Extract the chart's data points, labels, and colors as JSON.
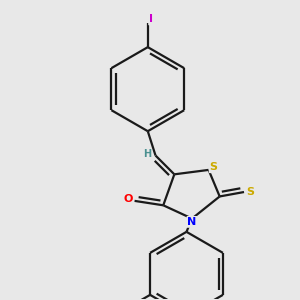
{
  "background_color": "#e8e8e8",
  "bond_color": "#1a1a1a",
  "atom_colors": {
    "S_ring": "#ccaa00",
    "S_thioxo": "#ccaa00",
    "N": "#0000ff",
    "O": "#ff0000",
    "I": "#cc00cc",
    "H": "#4a9090",
    "C": "#1a1a1a"
  },
  "figsize": [
    3.0,
    3.0
  ],
  "dpi": 100
}
